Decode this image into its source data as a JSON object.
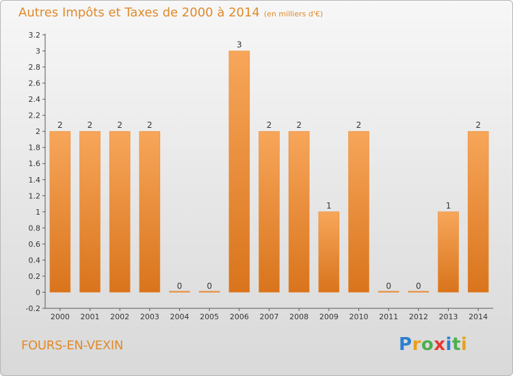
{
  "title": "Autres Impôts et Taxes de 2000 à 2014",
  "title_unit": "(en milliers d'€)",
  "place": "FOURS-EN-VEXIN",
  "logo": {
    "letters": [
      "P",
      "r",
      "o",
      "x",
      "i",
      "t",
      "i"
    ],
    "colors": [
      "#2d7fd1",
      "#e8a11a",
      "#4caf50",
      "#e53935",
      "#2d7fd1",
      "#4caf50",
      "#e8a11a"
    ]
  },
  "chart_data": {
    "type": "bar",
    "categories": [
      "2000",
      "2001",
      "2002",
      "2003",
      "2004",
      "2005",
      "2006",
      "2007",
      "2008",
      "2009",
      "2010",
      "2011",
      "2012",
      "2013",
      "2014"
    ],
    "values": [
      2,
      2,
      2,
      2,
      0,
      0,
      3,
      2,
      2,
      1,
      2,
      0,
      0,
      1,
      2
    ],
    "data_labels": [
      "2",
      "2",
      "2",
      "2",
      "0",
      "0",
      "3",
      "2",
      "2",
      "1",
      "2",
      "0",
      "0",
      "1",
      "2"
    ],
    "ylim": [
      -0.2,
      3.2
    ],
    "y_ticks": [
      "-0.2",
      "0",
      "0.2",
      "0.4",
      "0.6",
      "0.8",
      "1",
      "1.2",
      "1.4",
      "1.6",
      "1.8",
      "2",
      "2.2",
      "2.4",
      "2.6",
      "2.8",
      "3",
      "3.2"
    ],
    "bar_color": "#f0913a",
    "grid": false
  }
}
